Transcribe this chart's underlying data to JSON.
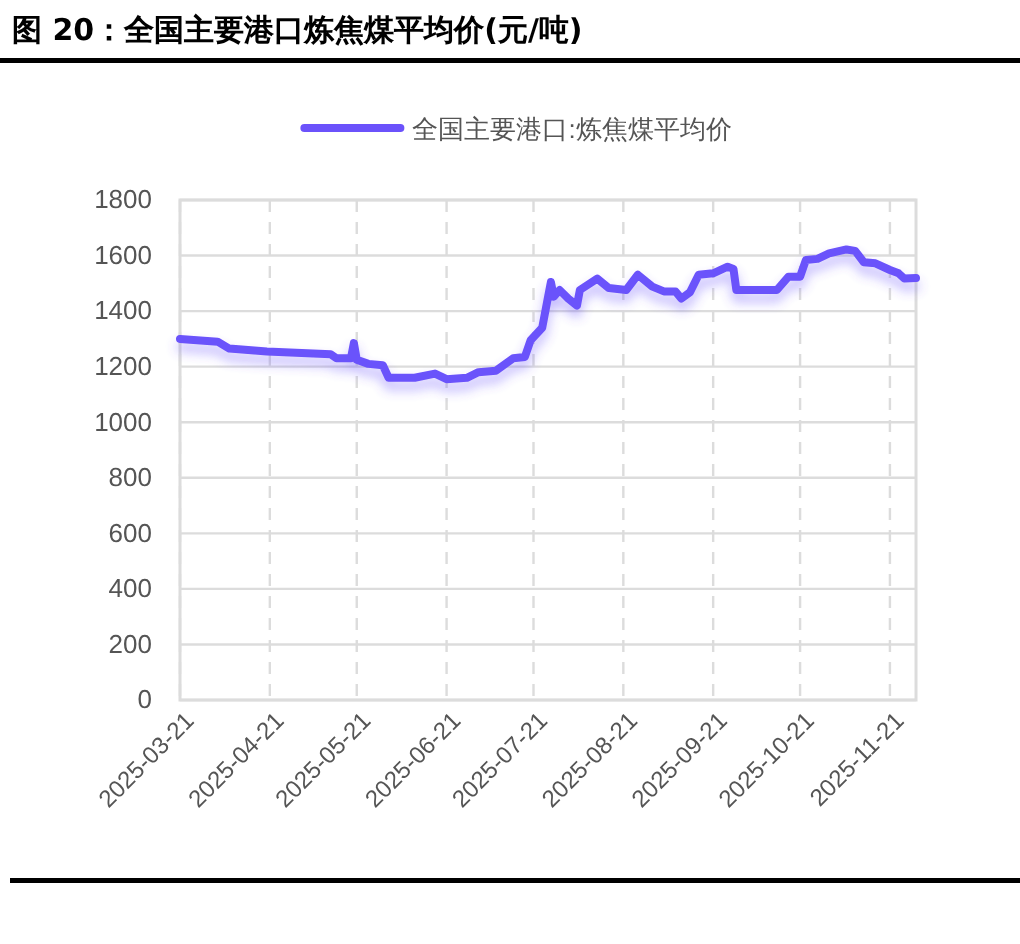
{
  "chart_data": {
    "type": "line",
    "title": "图 20：全国主要港口炼焦煤平均价(元/吨)",
    "xlim": [
      "2025-03-21",
      "2025-11-30"
    ],
    "xticks": [
      "2025-03-21",
      "2025-04-21",
      "2025-05-21",
      "2025-06-21",
      "2025-07-21",
      "2025-08-21",
      "2025-09-21",
      "2025-10-21",
      "2025-11-21"
    ],
    "ylim": [
      0,
      1800
    ],
    "yticks": [
      0,
      200,
      400,
      600,
      800,
      1000,
      1200,
      1400,
      1600,
      1800
    ],
    "grid": true,
    "legend": "top",
    "marker": "none",
    "line_style": "solid",
    "series": [
      {
        "name": "全国主要港口:炼焦煤平均价",
        "color": "#6b52fb",
        "x": [
          "2025-03-21",
          "2025-04-03",
          "2025-04-07",
          "2025-04-20",
          "2025-05-12",
          "2025-05-14",
          "2025-05-19",
          "2025-05-20",
          "2025-05-21",
          "2025-05-25",
          "2025-05-30",
          "2025-06-01",
          "2025-06-10",
          "2025-06-17",
          "2025-06-21",
          "2025-06-28",
          "2025-07-02",
          "2025-07-08",
          "2025-07-14",
          "2025-07-18",
          "2025-07-20",
          "2025-07-24",
          "2025-07-27",
          "2025-07-28",
          "2025-07-30",
          "2025-08-02",
          "2025-08-05",
          "2025-08-06",
          "2025-08-12",
          "2025-08-16",
          "2025-08-22",
          "2025-08-26",
          "2025-08-31",
          "2025-09-04",
          "2025-09-08",
          "2025-09-10",
          "2025-09-13",
          "2025-09-16",
          "2025-09-21",
          "2025-09-26",
          "2025-09-28",
          "2025-09-29",
          "2025-10-13",
          "2025-10-17",
          "2025-10-21",
          "2025-10-23",
          "2025-10-27",
          "2025-10-31",
          "2025-11-06",
          "2025-11-09",
          "2025-11-12",
          "2025-11-16",
          "2025-11-21",
          "2025-11-24",
          "2025-11-26",
          "2025-11-30"
        ],
        "values": [
          1300,
          1290,
          1265,
          1255,
          1245,
          1230,
          1230,
          1285,
          1225,
          1210,
          1205,
          1160,
          1160,
          1175,
          1155,
          1160,
          1180,
          1185,
          1230,
          1235,
          1295,
          1340,
          1505,
          1452,
          1476,
          1445,
          1420,
          1476,
          1517,
          1483,
          1476,
          1531,
          1488,
          1471,
          1471,
          1445,
          1468,
          1531,
          1536,
          1560,
          1552,
          1476,
          1476,
          1524,
          1524,
          1584,
          1588,
          1608,
          1622,
          1617,
          1576,
          1572,
          1548,
          1536,
          1517,
          1519
        ]
      }
    ]
  }
}
